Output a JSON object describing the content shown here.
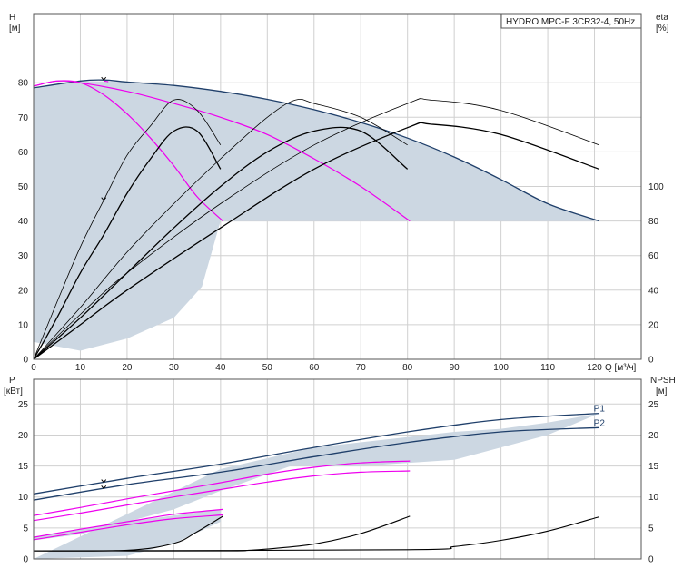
{
  "chart_data": [
    {
      "type": "line",
      "title": "HYDRO MPC-F 3CR32-4, 50Hz",
      "x_axis_label": "Q [м³/ч]",
      "y_left_label": [
        "H",
        "[м]"
      ],
      "y_right_label": [
        "eta",
        "[%]"
      ],
      "x_ticks": [
        0,
        10,
        20,
        30,
        40,
        50,
        60,
        70,
        80,
        90,
        100,
        110,
        120
      ],
      "y_left_ticks": [
        0,
        10,
        20,
        30,
        40,
        50,
        60,
        70,
        80
      ],
      "y_right_ticks": [
        0,
        20,
        40,
        60,
        80,
        100
      ],
      "xlim": [
        0,
        130
      ],
      "ylim_left": [
        0,
        100
      ],
      "ylim_right": [
        0,
        200
      ],
      "grid": true,
      "colors": {
        "region": "#ccd7e2",
        "envelope": "#1f3f6a",
        "reduced_speed": "#ee00ee",
        "efficiency": "#000000"
      },
      "operating_region": [
        [
          0,
          78.5
        ],
        [
          10,
          80.5
        ],
        [
          20,
          80.2
        ],
        [
          30,
          79.2
        ],
        [
          40,
          77.5
        ],
        [
          50,
          75.2
        ],
        [
          60,
          72.2
        ],
        [
          70,
          68.5
        ],
        [
          80,
          64
        ],
        [
          90,
          58.5
        ],
        [
          100,
          52
        ],
        [
          110,
          45
        ],
        [
          121,
          40
        ],
        [
          40,
          40
        ],
        [
          36,
          21
        ],
        [
          30,
          12
        ],
        [
          20,
          6
        ],
        [
          10,
          2.5
        ],
        [
          0,
          5
        ]
      ],
      "series": [
        {
          "role": "envelope",
          "x": [
            0,
            10,
            15,
            20,
            30,
            40,
            50,
            60,
            70,
            80,
            90,
            100,
            110,
            121
          ],
          "y": [
            78.5,
            80.5,
            80.8,
            80.2,
            79.2,
            77.5,
            75.2,
            72.2,
            68.5,
            64,
            58.5,
            52,
            45,
            40
          ]
        },
        {
          "role": "reduced-speed",
          "x": [
            0,
            5,
            10,
            15,
            20,
            25,
            30,
            35,
            40.5
          ],
          "y": [
            79,
            80.5,
            80,
            76.5,
            71,
            64,
            56,
            47,
            40
          ]
        },
        {
          "role": "reduced-speed",
          "x": [
            0,
            5,
            10,
            20,
            30,
            40,
            50,
            60,
            70,
            80.5
          ],
          "y": [
            79,
            80.5,
            80,
            77.5,
            74,
            70,
            65,
            58,
            50,
            40
          ]
        },
        {
          "role": "reduced-speed",
          "x": [
            15,
            16
          ],
          "y": [
            80.5,
            80.3
          ]
        },
        {
          "role": "efficiency",
          "x": [
            0,
            5,
            10,
            15,
            20,
            25,
            30,
            35,
            40
          ],
          "y": [
            0,
            16.5,
            32.5,
            46,
            59,
            67.5,
            75,
            72,
            62
          ]
        },
        {
          "role": "efficiency",
          "x": [
            0,
            5,
            10,
            15,
            20,
            25,
            30,
            35,
            40
          ],
          "y": [
            0,
            12,
            25,
            36,
            48,
            58,
            66,
            66,
            55
          ]
        },
        {
          "role": "efficiency",
          "x": [
            0,
            10,
            20,
            30,
            40,
            50,
            56,
            60,
            70,
            80
          ],
          "y": [
            0,
            15,
            31,
            45,
            58,
            70,
            75,
            74,
            70,
            62
          ]
        },
        {
          "role": "efficiency",
          "x": [
            0,
            10,
            20,
            30,
            40,
            50,
            60,
            70,
            80
          ],
          "y": [
            0,
            12,
            25,
            38,
            50,
            60,
            66,
            66,
            55
          ]
        },
        {
          "role": "efficiency",
          "x": [
            0,
            10,
            20,
            40,
            60,
            80,
            85,
            100,
            121
          ],
          "y": [
            0,
            13,
            25,
            45,
            62,
            74,
            75,
            72,
            62
          ]
        },
        {
          "role": "efficiency",
          "x": [
            0,
            10,
            20,
            40,
            60,
            80,
            85,
            100,
            121
          ],
          "y": [
            0,
            10,
            20,
            38,
            55,
            67,
            68,
            65,
            55
          ]
        }
      ]
    },
    {
      "type": "line",
      "y_left_label": [
        "P",
        "[кВт]"
      ],
      "y_right_label": [
        "NPSH",
        "[м]"
      ],
      "x_ticks": [
        0,
        10,
        20,
        30,
        40,
        50,
        60,
        70,
        80,
        90,
        100,
        110,
        120
      ],
      "y_left_ticks": [
        0,
        5,
        10,
        15,
        20,
        25
      ],
      "y_right_ticks": [
        0,
        5,
        10,
        15,
        20,
        25
      ],
      "xlim": [
        0,
        130
      ],
      "ylim_left": [
        0,
        29
      ],
      "ylim_right": [
        0,
        29
      ],
      "grid": true,
      "colors": {
        "region": "#ccd7e2",
        "envelope": "#1f3f6a",
        "reduced_speed": "#ee00ee",
        "npsh": "#000000"
      },
      "operating_region": [
        [
          40,
          14.5
        ],
        [
          60,
          18
        ],
        [
          90,
          20.5
        ],
        [
          100,
          21
        ],
        [
          110,
          22
        ],
        [
          121,
          23.5
        ],
        [
          110,
          20
        ],
        [
          90,
          16
        ],
        [
          70,
          15
        ],
        [
          55,
          15
        ],
        [
          40,
          11
        ],
        [
          30,
          8
        ],
        [
          15,
          5
        ],
        [
          10,
          4
        ],
        [
          0,
          3
        ],
        [
          0,
          3.5
        ],
        [
          20,
          6
        ],
        [
          40,
          8
        ],
        [
          40,
          6
        ],
        [
          30,
          2.5
        ],
        [
          20,
          0.5
        ],
        [
          0,
          0
        ]
      ],
      "series": [
        {
          "name": "P1",
          "role": "envelope",
          "x": [
            0,
            20,
            40,
            60,
            80,
            100,
            121
          ],
          "y": [
            10.5,
            13,
            15.3,
            18,
            20.5,
            22.5,
            23.5
          ]
        },
        {
          "name": "P2",
          "role": "envelope",
          "x": [
            0,
            20,
            40,
            60,
            80,
            100,
            121
          ],
          "y": [
            9.5,
            12,
            14,
            16.5,
            18.8,
            20.5,
            21.2
          ]
        },
        {
          "role": "reduced-speed",
          "x": [
            0,
            10,
            20,
            30,
            40,
            50,
            60,
            70,
            80.5
          ],
          "y": [
            7,
            8.3,
            9.7,
            11,
            12.3,
            13.7,
            14.8,
            15.5,
            15.8
          ]
        },
        {
          "role": "reduced-speed",
          "x": [
            0,
            10,
            20,
            30,
            40,
            50,
            60,
            70,
            80.5
          ],
          "y": [
            6.2,
            7.4,
            8.7,
            10,
            11.2,
            12.4,
            13.4,
            14,
            14.2
          ]
        },
        {
          "role": "reduced-speed",
          "x": [
            0,
            10,
            20,
            30,
            40.5
          ],
          "y": [
            3.5,
            4.8,
            6,
            7.2,
            8
          ]
        },
        {
          "role": "reduced-speed",
          "x": [
            0,
            10,
            20,
            30,
            40.5
          ],
          "y": [
            3.1,
            4.3,
            5.5,
            6.5,
            7.1
          ]
        },
        {
          "role": "npsh",
          "x": [
            0,
            20,
            30,
            35,
            40.5
          ],
          "y": [
            1.3,
            1.4,
            2.5,
            4.4,
            6.9
          ]
        },
        {
          "role": "npsh",
          "x": [
            0,
            40,
            46,
            50,
            60,
            70,
            80.5
          ],
          "y": [
            1.3,
            1.3,
            1.4,
            1.6,
            2.4,
            4.1,
            6.9
          ]
        },
        {
          "role": "npsh",
          "x": [
            0,
            80,
            90,
            100,
            110,
            121
          ],
          "y": [
            1.3,
            1.5,
            2,
            3,
            4.5,
            6.8
          ]
        }
      ]
    }
  ]
}
